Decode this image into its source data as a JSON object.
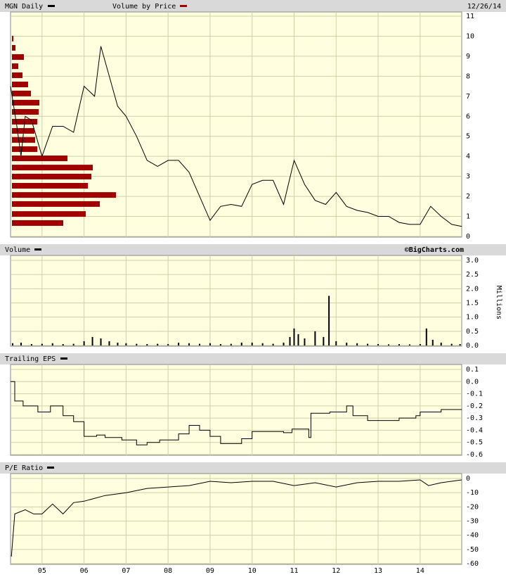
{
  "chart_data": [
    {
      "type": "line",
      "title": "MGN Daily",
      "date": "12/26/14",
      "color": "#000000",
      "x": [
        2004.25,
        2004.4,
        2004.5,
        2004.6,
        2004.75,
        2005,
        2005.25,
        2005.5,
        2005.75,
        2006,
        2006.25,
        2006.4,
        2006.6,
        2006.8,
        2007,
        2007.25,
        2007.5,
        2007.75,
        2008,
        2008.25,
        2008.5,
        2008.75,
        2009,
        2009.25,
        2009.5,
        2009.75,
        2010,
        2010.25,
        2010.5,
        2010.75,
        2011,
        2011.25,
        2011.5,
        2011.75,
        2012,
        2012.25,
        2012.5,
        2012.75,
        2013,
        2013.25,
        2013.5,
        2013.75,
        2014,
        2014.25,
        2014.5,
        2014.75,
        2014.99
      ],
      "values": [
        7.5,
        5.5,
        4.0,
        6.0,
        5.8,
        4.0,
        5.5,
        5.5,
        5.2,
        7.5,
        7.0,
        9.5,
        8.0,
        6.5,
        6.0,
        5.0,
        3.8,
        3.5,
        3.8,
        3.8,
        3.2,
        2.0,
        0.8,
        1.5,
        1.6,
        1.5,
        2.6,
        2.8,
        2.8,
        1.6,
        3.8,
        2.6,
        1.8,
        1.6,
        2.2,
        1.5,
        1.3,
        1.2,
        1.0,
        1.0,
        0.7,
        0.6,
        0.6,
        1.5,
        1.0,
        0.6,
        0.5
      ],
      "volume_by_price": {
        "name": "Volume by Price",
        "color": "#a00000",
        "levels": [
          0.67,
          1.12,
          1.62,
          2.07,
          2.53,
          2.99,
          3.44,
          3.9,
          4.36,
          4.82,
          5.27,
          5.73,
          6.22,
          6.68,
          7.14,
          7.59,
          8.05,
          8.5,
          8.96,
          9.42,
          9.88
        ],
        "values": [
          73,
          105,
          125,
          148,
          108,
          113,
          115,
          79,
          36,
          33,
          32,
          36,
          38,
          39,
          27,
          23,
          15,
          9,
          17,
          5,
          2
        ]
      },
      "ylim": [
        0,
        11
      ],
      "yticks": [
        0,
        1,
        2,
        3,
        4,
        5,
        6,
        7,
        8,
        9,
        10,
        11
      ],
      "grid": true
    },
    {
      "type": "bar",
      "title": "Volume",
      "credit": "©BigCharts.com",
      "y_label": "Millions",
      "color": "#000000",
      "x": [
        2004.3,
        2004.5,
        2004.75,
        2005,
        2005.25,
        2005.5,
        2005.75,
        2006,
        2006.2,
        2006.4,
        2006.6,
        2006.8,
        2007,
        2007.25,
        2007.5,
        2007.75,
        2008,
        2008.25,
        2008.5,
        2008.75,
        2009,
        2009.25,
        2009.5,
        2009.75,
        2010,
        2010.25,
        2010.5,
        2010.75,
        2010.9,
        2011.0,
        2011.1,
        2011.25,
        2011.5,
        2011.7,
        2011.83,
        2012,
        2012.25,
        2012.5,
        2012.75,
        2013,
        2013.25,
        2013.5,
        2013.75,
        2014,
        2014.15,
        2014.3,
        2014.5,
        2014.75,
        2014.95
      ],
      "values": [
        0.08,
        0.1,
        0.05,
        0.06,
        0.08,
        0.05,
        0.06,
        0.15,
        0.3,
        0.25,
        0.15,
        0.1,
        0.08,
        0.06,
        0.05,
        0.06,
        0.05,
        0.1,
        0.08,
        0.06,
        0.08,
        0.05,
        0.06,
        0.1,
        0.1,
        0.08,
        0.06,
        0.1,
        0.3,
        0.6,
        0.4,
        0.25,
        0.5,
        0.3,
        1.75,
        0.15,
        0.1,
        0.08,
        0.06,
        0.05,
        0.04,
        0.05,
        0.04,
        0.05,
        0.6,
        0.2,
        0.1,
        0.06,
        0.05
      ],
      "ylim": [
        0,
        3
      ],
      "yticks": [
        {
          "value": 0,
          "label": "0.0"
        },
        0.5,
        {
          "value": 1,
          "label": "1.0"
        },
        1.5,
        {
          "value": 2,
          "label": "2.0"
        },
        2.5,
        {
          "value": 3,
          "label": "3.0"
        }
      ],
      "grid": true
    },
    {
      "type": "step",
      "title": "Trailing EPS",
      "color": "#000000",
      "x": [
        2004.25,
        2004.35,
        2004.55,
        2004.9,
        2005.2,
        2005.5,
        2005.75,
        2006.0,
        2006.3,
        2006.5,
        2006.9,
        2007.25,
        2007.5,
        2007.8,
        2008.25,
        2008.5,
        2008.75,
        2009.0,
        2009.25,
        2009.75,
        2010.0,
        2010.75,
        2010.95,
        2011.35,
        2011.4,
        2011.85,
        2012.25,
        2012.4,
        2012.75,
        2013.5,
        2013.9,
        2014.0,
        2014.5
      ],
      "values": [
        0.0,
        -0.16,
        -0.2,
        -0.25,
        -0.2,
        -0.28,
        -0.33,
        -0.45,
        -0.44,
        -0.46,
        -0.48,
        -0.52,
        -0.5,
        -0.48,
        -0.43,
        -0.36,
        -0.4,
        -0.45,
        -0.51,
        -0.47,
        -0.41,
        -0.42,
        -0.39,
        -0.46,
        -0.26,
        -0.25,
        -0.2,
        -0.28,
        -0.32,
        -0.3,
        -0.28,
        -0.25,
        -0.23
      ],
      "ylim": [
        -0.6,
        0.1
      ],
      "yticks": [
        0.1,
        {
          "value": 0,
          "label": "0.0"
        },
        -0.1,
        -0.2,
        -0.3,
        -0.4,
        -0.5,
        -0.6
      ],
      "grid": true
    },
    {
      "type": "line",
      "title": "P/E Ratio",
      "color": "#000000",
      "x": [
        2004.27,
        2004.35,
        2004.6,
        2004.8,
        2005,
        2005.25,
        2005.5,
        2005.75,
        2006,
        2006.5,
        2007,
        2007.5,
        2008,
        2008.5,
        2009,
        2009.5,
        2010,
        2010.5,
        2011,
        2011.5,
        2012,
        2012.5,
        2013,
        2013.5,
        2014,
        2014.2,
        2014.5,
        2014.99
      ],
      "values": [
        -55,
        -25,
        -22,
        -25,
        -25,
        -18,
        -25,
        -17,
        -16,
        -12,
        -10,
        -7,
        -6,
        -5,
        -2,
        -3,
        -2,
        -2,
        -5,
        -3,
        -6,
        -3,
        -2,
        -2,
        -1,
        -5,
        -3,
        -1
      ],
      "ylim": [
        -60,
        0
      ],
      "yticks": [
        0,
        -10,
        -20,
        -30,
        -40,
        -50,
        -60
      ],
      "grid": true,
      "xlim": [
        2004.25,
        2014.99
      ],
      "xticks": [
        {
          "value": 2005,
          "label": "05"
        },
        {
          "value": 2006,
          "label": "06"
        },
        {
          "value": 2007,
          "label": "07"
        },
        {
          "value": 2008,
          "label": "08"
        },
        {
          "value": 2009,
          "label": "09"
        },
        {
          "value": 2010,
          "label": "10"
        },
        {
          "value": 2011,
          "label": "11"
        },
        {
          "value": 2012,
          "label": "12"
        },
        {
          "value": 2013,
          "label": "13"
        },
        {
          "value": 2014,
          "label": "14"
        }
      ]
    }
  ]
}
